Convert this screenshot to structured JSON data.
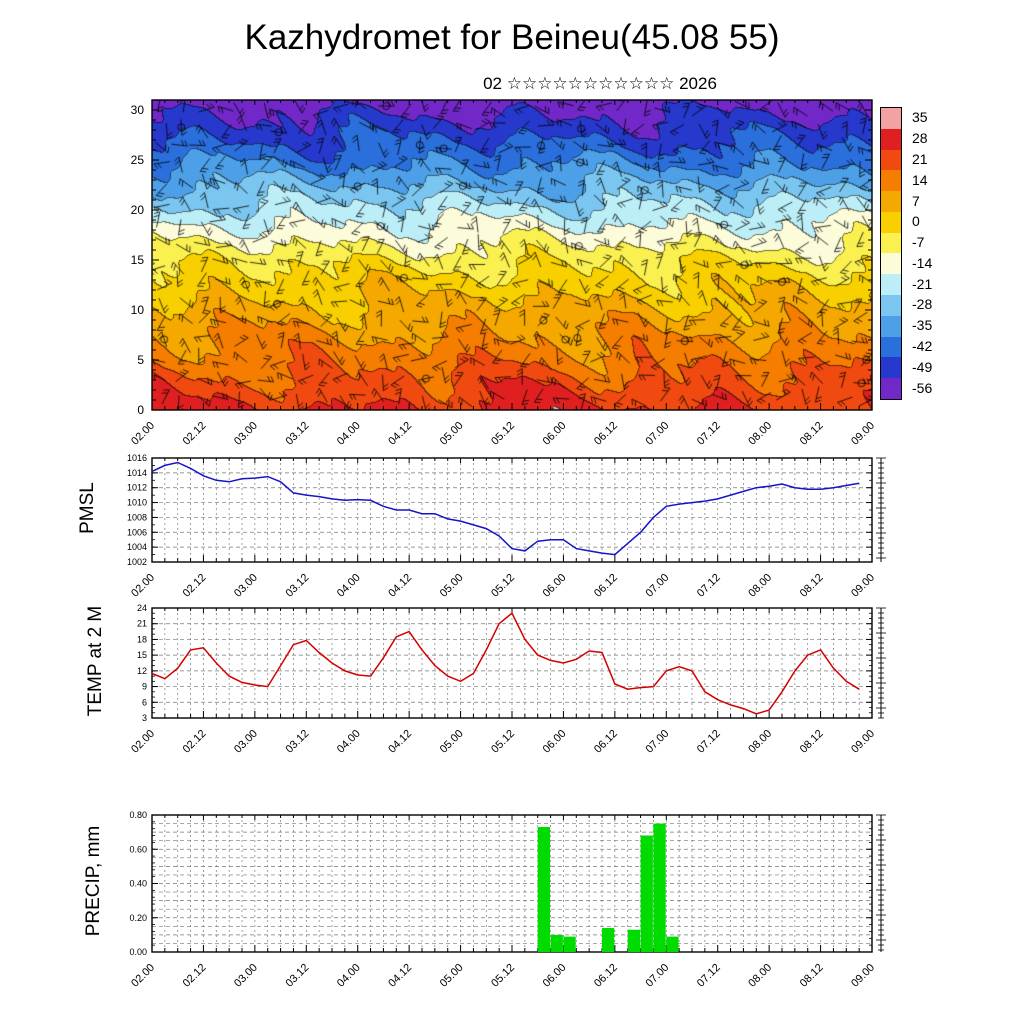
{
  "title": "Kazhydromet for Beineu(45.08 55)",
  "subtitle": "02 ☆☆☆☆☆☆☆☆☆☆☆ 2026",
  "time_labels": [
    "02.00",
    "02.12",
    "03.00",
    "03.12",
    "04.00",
    "04.12",
    "05.00",
    "05.12",
    "06.00",
    "06.12",
    "07.00",
    "07.12",
    "08.00",
    "08.12",
    "09.00"
  ],
  "colorbar_labels": [
    "35",
    "28",
    "21",
    "14",
    "7",
    "0",
    "-7",
    "-14",
    "-21",
    "-28",
    "-35",
    "-42",
    "-49",
    "-56"
  ],
  "colors": {
    "pmsl_line": "#1414cc",
    "temp_line": "#d40000",
    "precip_bar": "#00dc00",
    "frame": "#000000",
    "grid": "#777777",
    "scale": [
      "#f2a2a2",
      "#e02020",
      "#f04a10",
      "#f57d00",
      "#f5a800",
      "#f8d000",
      "#faf050",
      "#fdfcda",
      "#bceef8",
      "#7ac6f0",
      "#4d9fe8",
      "#2a6fdc",
      "#2738cc",
      "#7228c8"
    ]
  },
  "chart_data": [
    {
      "type": "heatmap",
      "name": "upper-air temperature cross-section with wind barbs",
      "ylim": [
        0,
        31
      ],
      "yticks": [
        0,
        5,
        10,
        15,
        20,
        25,
        30
      ],
      "x_start": 2.0,
      "x_end": 9.0,
      "levels": [
        0,
        5,
        10,
        15,
        20,
        25,
        30,
        31
      ],
      "profile_temps": [
        25,
        15,
        6,
        -5,
        -22,
        -40,
        -54,
        -58
      ],
      "colorbar_range": [
        -56,
        35
      ],
      "colorbar_step": 7
    },
    {
      "type": "line",
      "name": "PMSL",
      "ylim": [
        1002,
        1016
      ],
      "yticks": [
        1002,
        1004,
        1006,
        1008,
        1010,
        1012,
        1014,
        1016
      ],
      "x_start": 2.0,
      "x_step": 0.125,
      "values": [
        1014.2,
        1015.0,
        1015.4,
        1014.6,
        1013.6,
        1013.0,
        1012.8,
        1013.2,
        1013.3,
        1013.5,
        1012.8,
        1011.3,
        1011.0,
        1010.8,
        1010.5,
        1010.3,
        1010.4,
        1010.3,
        1009.5,
        1009.0,
        1009.0,
        1008.5,
        1008.5,
        1007.8,
        1007.5,
        1007.0,
        1006.5,
        1005.5,
        1003.8,
        1003.5,
        1004.8,
        1005.0,
        1005.0,
        1003.8,
        1003.5,
        1003.2,
        1003.0,
        1004.5,
        1006.0,
        1008.0,
        1009.5,
        1009.8,
        1010.0,
        1010.2,
        1010.5,
        1011.0,
        1011.5,
        1012.0,
        1012.2,
        1012.5,
        1012.0,
        1011.8,
        1011.8,
        1012.0,
        1012.3,
        1012.6
      ]
    },
    {
      "type": "line",
      "name": "TEMP at 2 M",
      "ylim": [
        3,
        24
      ],
      "yticks": [
        3,
        6,
        9,
        12,
        15,
        18,
        21,
        24
      ],
      "x_start": 2.0,
      "x_step": 0.125,
      "values": [
        11.5,
        10.5,
        12.5,
        16.0,
        16.4,
        13.5,
        11.0,
        9.8,
        9.3,
        9.0,
        13.0,
        17.0,
        17.8,
        15.5,
        13.5,
        12.0,
        11.2,
        11.0,
        14.5,
        18.5,
        19.5,
        16.0,
        13.0,
        11.0,
        10.0,
        11.5,
        16.0,
        21.0,
        23.0,
        18.0,
        15.0,
        14.0,
        13.5,
        14.2,
        15.8,
        15.5,
        9.5,
        8.5,
        8.8,
        9.0,
        12.0,
        12.8,
        12.0,
        8.0,
        6.5,
        5.5,
        4.8,
        3.8,
        4.5,
        8.0,
        12.0,
        15.0,
        16.0,
        12.5,
        10.0,
        8.5
      ]
    },
    {
      "type": "bar",
      "name": "PRECIP, mm",
      "ylim": [
        0,
        0.8
      ],
      "yticks": [
        "0.00",
        "0.20",
        "0.40",
        "0.60",
        "0.80"
      ],
      "x_start": 2.0,
      "x_step": 0.125,
      "values": [
        0,
        0,
        0,
        0,
        0,
        0,
        0,
        0,
        0,
        0,
        0,
        0,
        0,
        0,
        0,
        0,
        0,
        0,
        0,
        0,
        0,
        0,
        0,
        0,
        0,
        0,
        0,
        0,
        0,
        0,
        0.73,
        0.1,
        0.09,
        0,
        0,
        0.14,
        0,
        0.13,
        0.68,
        0.75,
        0.09,
        0,
        0,
        0,
        0,
        0,
        0,
        0,
        0,
        0,
        0,
        0,
        0,
        0,
        0,
        0
      ]
    }
  ]
}
